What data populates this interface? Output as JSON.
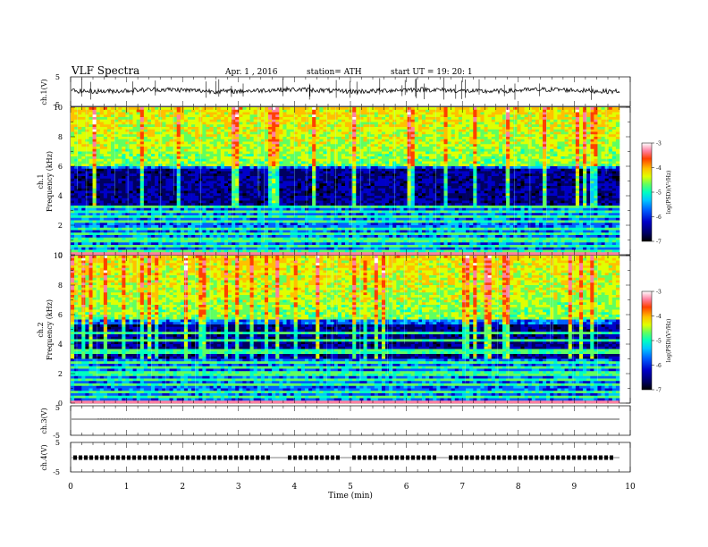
{
  "header": {
    "title": "VLF  Spectra",
    "date": "Apr. 1   , 2016",
    "station": "station= ATH",
    "start": "start  UT  =     19: 20: 1"
  },
  "chart_data": [
    {
      "type": "line",
      "panel": "ch1-waveform",
      "ylabel": "ch.1(V)",
      "ylim": [
        -5,
        5
      ],
      "yticks": [
        5,
        -5
      ],
      "description_level": 0.4,
      "series": [
        {
          "values_v_approx": [
            0.4,
            0.5,
            0.2,
            0.6,
            0.3,
            0.5,
            0.4,
            0.2,
            0.5,
            0.4
          ]
        }
      ]
    },
    {
      "type": "heatmap",
      "panel": "ch1-spectrogram",
      "ylabel_top": "ch.1",
      "ylabel": "Frequency  (kHz)",
      "ylim": [
        0,
        10
      ],
      "yticks": [
        0,
        2,
        4,
        6,
        8,
        10
      ],
      "xlim": [
        0,
        9.8
      ],
      "bands_khz": {
        "high_activity": [
          6,
          10
        ],
        "quiet": [
          3.2,
          5.8
        ],
        "narrowband_lines": [
          0.3,
          0.6,
          1.0,
          1.4,
          1.8,
          2.3,
          2.6,
          2.9,
          3.2
        ]
      }
    },
    {
      "type": "heatmap",
      "panel": "ch2-spectrogram",
      "ylabel_top": "ch.2",
      "ylabel": "Frequency  (kHz)",
      "ylim": [
        0,
        10
      ],
      "yticks": [
        0,
        2,
        4,
        6,
        8,
        10
      ],
      "xlim": [
        0,
        9.8
      ],
      "bands_khz": {
        "high_activity": [
          5.6,
          10
        ],
        "quiet": [
          3.0,
          5.4
        ],
        "narrowband_lines": [
          0.4,
          0.8,
          1.2,
          1.6,
          2.0,
          2.4,
          2.8,
          3.5,
          4.2,
          4.8
        ]
      }
    },
    {
      "type": "line",
      "panel": "ch3-waveform",
      "ylabel": "ch.3(V)",
      "ylim": [
        -5,
        5
      ],
      "yticks": [
        5,
        -5
      ],
      "series": [
        {
          "values_v_approx": [
            -1,
            -1,
            -1,
            -1,
            -1,
            -1,
            -1,
            -1,
            -1,
            -1
          ]
        }
      ]
    },
    {
      "type": "line",
      "panel": "ch4-waveform",
      "ylabel": "ch.4(V)",
      "ylim": [
        -5,
        5
      ],
      "yticks": [
        5,
        -5
      ],
      "series": [
        {
          "values_v_approx": [
            0,
            0,
            0,
            0,
            0,
            0,
            0,
            0,
            0,
            0
          ]
        }
      ]
    }
  ],
  "xaxis": {
    "label": "Time  (min)",
    "xlim": [
      0,
      10
    ],
    "ticks": [
      "0",
      "1",
      "2",
      "3",
      "4",
      "5",
      "6",
      "7",
      "8",
      "9",
      "10"
    ]
  },
  "colorbars": [
    {
      "label": "log(PSD)(V²/Hz)",
      "ticks": [
        "-3",
        "-4",
        "-5",
        "-6",
        "-7"
      ],
      "range": [
        -7,
        -3
      ]
    },
    {
      "label": "log(PSD)(V²/Hz)",
      "ticks": [
        "-3",
        "-4",
        "-5",
        "-6",
        "-7"
      ],
      "range": [
        -7,
        -3
      ]
    }
  ],
  "colors": {
    "scale": [
      "#000000",
      "#000060",
      "#0000c8",
      "#0060ff",
      "#00c8ff",
      "#00ffc0",
      "#60ff60",
      "#e0ff00",
      "#ffc000",
      "#ff4000",
      "#ff80a0",
      "#ffffff"
    ]
  }
}
